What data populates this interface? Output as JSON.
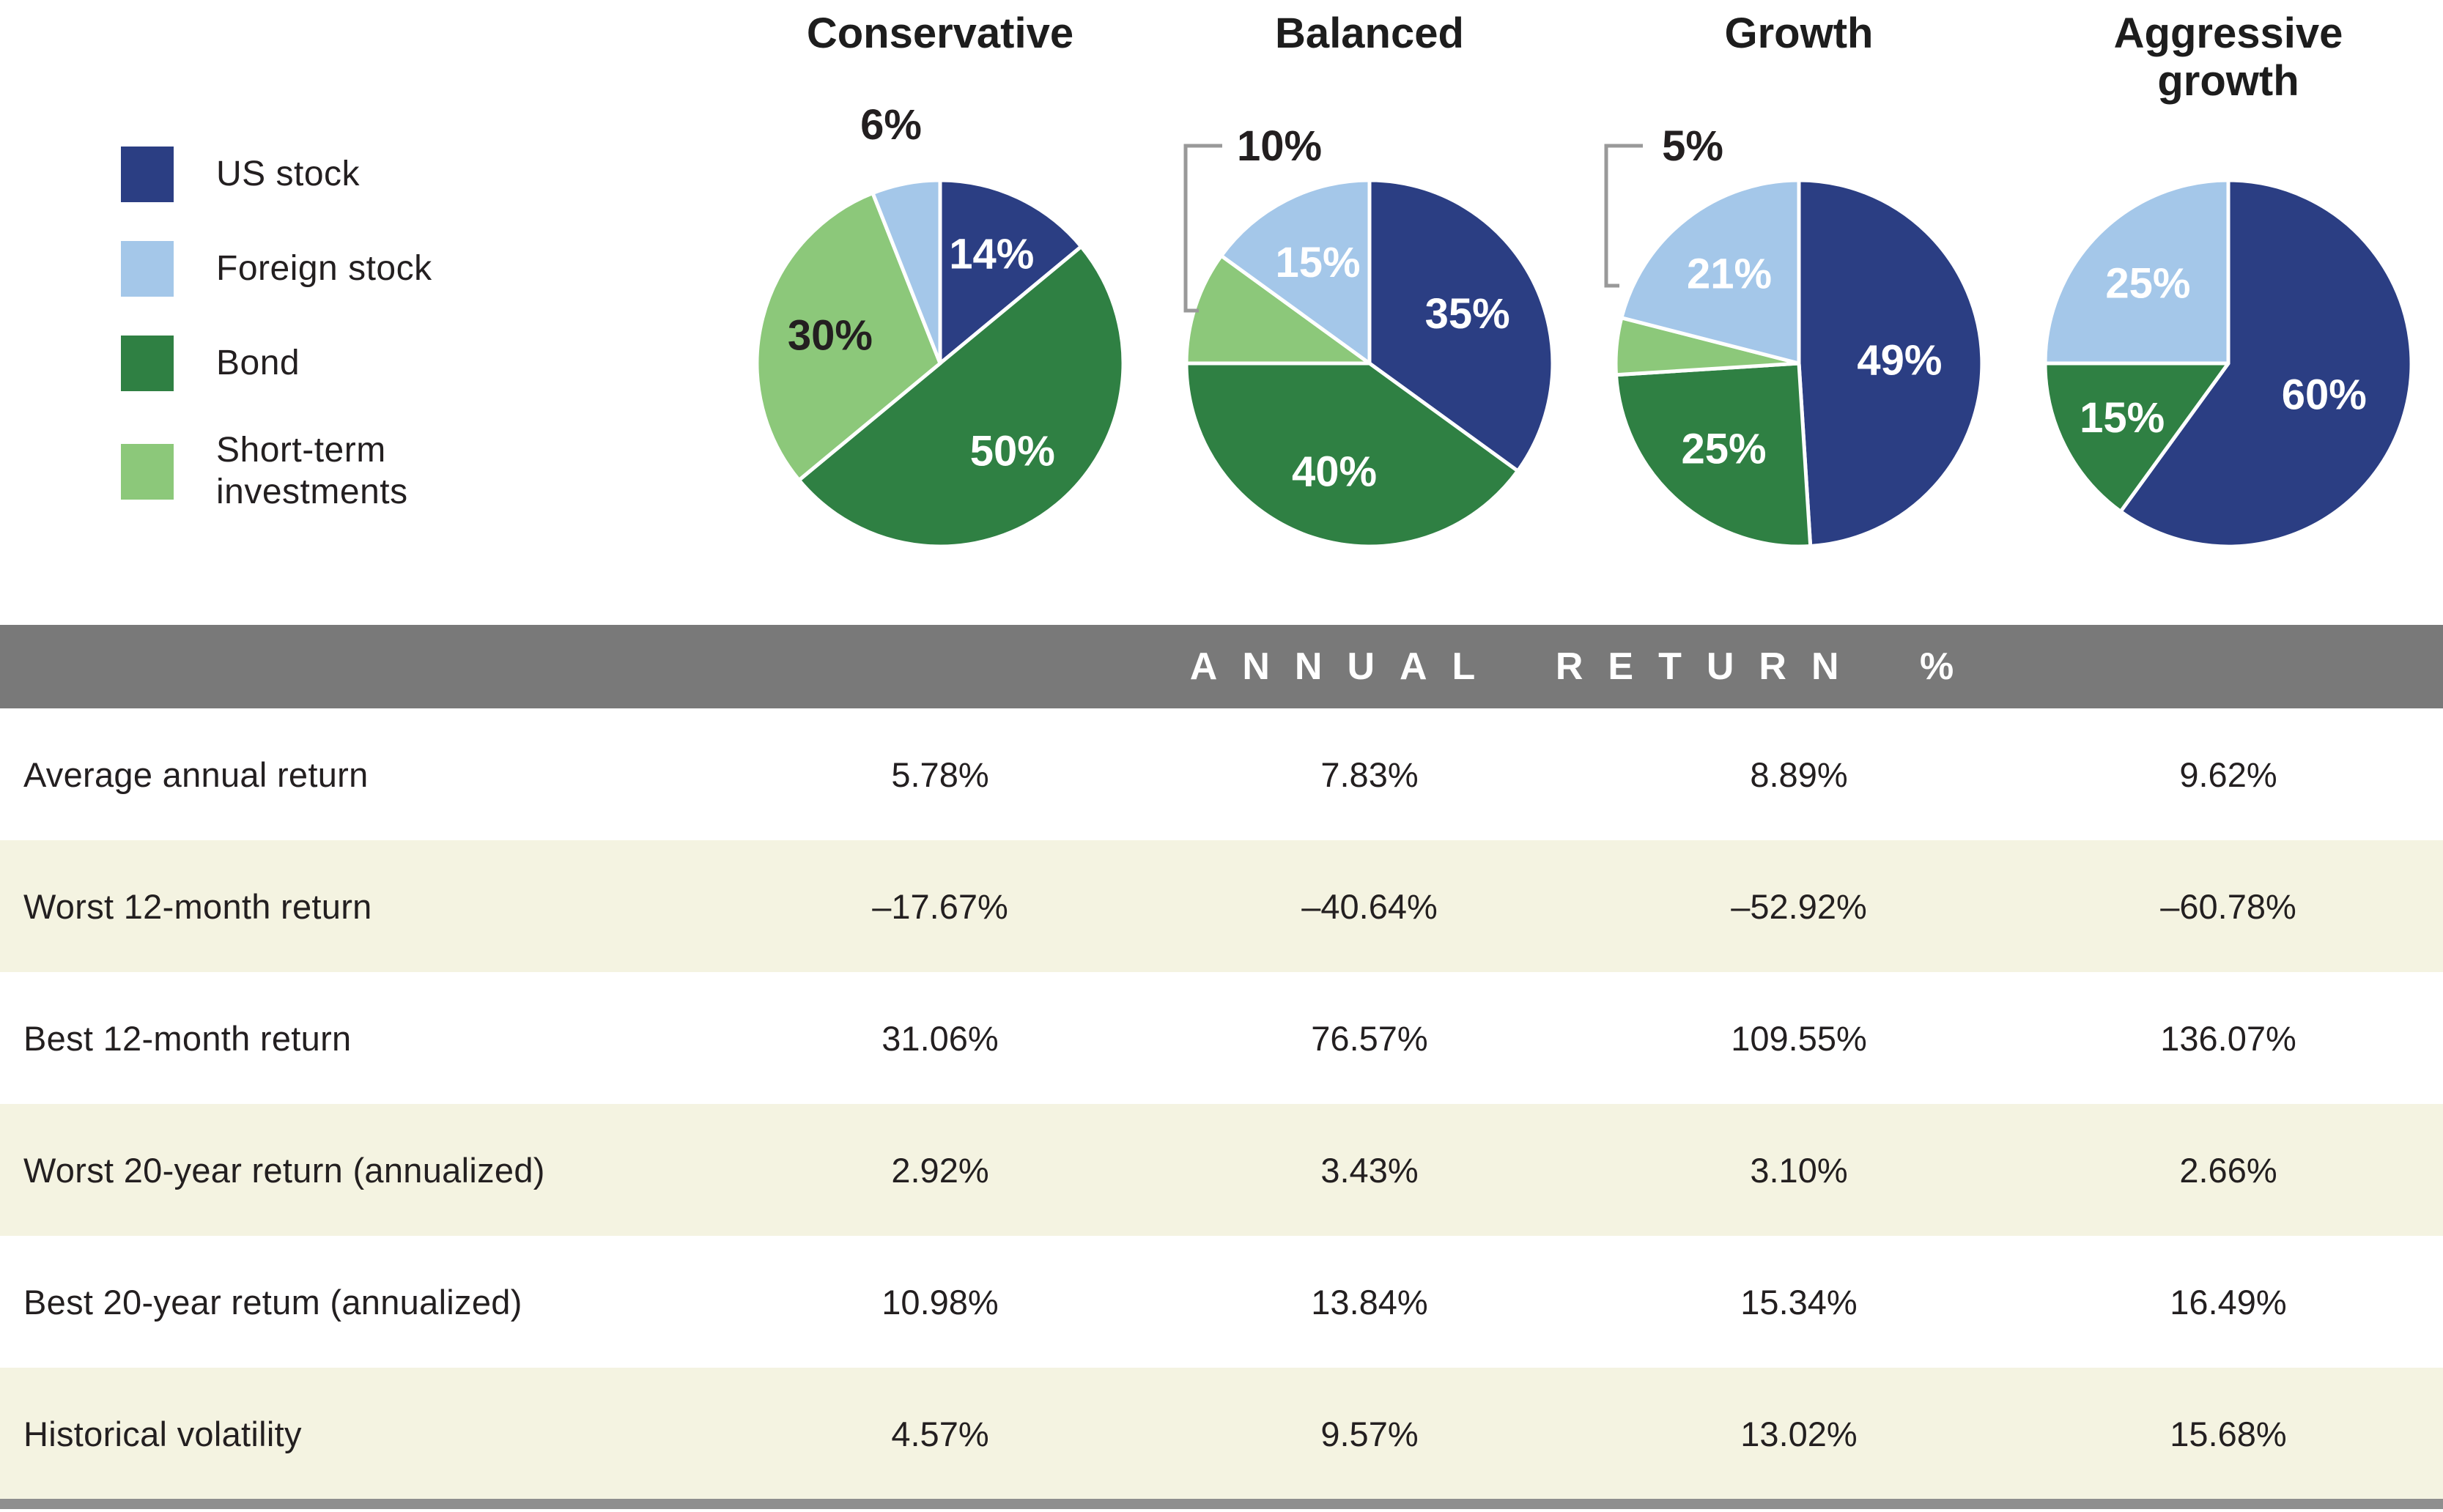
{
  "colors": {
    "us_stock": "#2b3e83",
    "foreign_stock": "#a4c7e9",
    "bond": "#2f8043",
    "short_term": "#8cc87a",
    "header_bar": "#797979",
    "row_alt": "#f4f3e1",
    "text_dark": "#231f20",
    "white_label": "#ffffff",
    "bracket": "#999999",
    "bottom_bar": "#8e8e8e"
  },
  "legend": {
    "items": [
      {
        "label": "US stock",
        "color_key": "us_stock"
      },
      {
        "label": "Foreign stock",
        "color_key": "foreign_stock"
      },
      {
        "label": "Bond",
        "color_key": "bond"
      },
      {
        "label": "Short-term investments",
        "color_key": "short_term"
      }
    ]
  },
  "chart_data": {
    "type": "pie",
    "legend": [
      "US stock",
      "Foreign stock",
      "Bond",
      "Short-term investments"
    ],
    "layout": {
      "start_angle_deg": 0,
      "direction": "clockwise",
      "radius_px": 250
    },
    "pies": [
      {
        "title": "Conservative",
        "title_lines": [
          "Conservative"
        ],
        "slices": [
          {
            "name": "US stock",
            "value": 14,
            "label": "14%",
            "color": "us_stock",
            "label_style": "inside",
            "lr": 0.66
          },
          {
            "name": "Bond",
            "value": 50,
            "label": "50%",
            "color": "bond",
            "label_style": "inside",
            "lr": 0.62
          },
          {
            "name": "Short-term investments",
            "value": 30,
            "label": "30%",
            "color": "short_term",
            "label_style": "inside-dark",
            "lr": 0.62
          },
          {
            "name": "Foreign stock",
            "value": 6,
            "label": "6%",
            "color": "foreign_stock",
            "label_style": "outside",
            "label_xy": [
              226,
              170
            ]
          }
        ]
      },
      {
        "title": "Balanced",
        "title_lines": [
          "Balanced"
        ],
        "slices": [
          {
            "name": "US stock",
            "value": 35,
            "label": "35%",
            "color": "us_stock",
            "label_style": "inside",
            "lr": 0.6
          },
          {
            "name": "Bond",
            "value": 40,
            "label": "40%",
            "color": "bond",
            "label_style": "inside",
            "lr": 0.62
          },
          {
            "name": "Short-term investments",
            "value": 10,
            "label": "10%",
            "color": "short_term",
            "label_style": "outside",
            "label_xy": [
              170,
              199
            ],
            "callout_line": [
              [
                92,
                199
              ],
              [
                42,
                199
              ],
              [
                42,
                424
              ],
              [
                60,
                424
              ]
            ]
          },
          {
            "name": "Foreign stock",
            "value": 15,
            "label": "15%",
            "color": "foreign_stock",
            "label_style": "inside",
            "lr": 0.62
          }
        ]
      },
      {
        "title": "Growth",
        "title_lines": [
          "Growth"
        ],
        "slices": [
          {
            "name": "US stock",
            "value": 49,
            "label": "49%",
            "color": "us_stock",
            "label_style": "inside",
            "lr": 0.55
          },
          {
            "name": "Bond",
            "value": 25,
            "label": "25%",
            "color": "bond",
            "label_style": "inside",
            "lr": 0.62
          },
          {
            "name": "Short-term investments",
            "value": 5,
            "label": "5%",
            "color": "short_term",
            "label_style": "outside",
            "label_xy": [
              148,
              199
            ],
            "callout_line": [
              [
                80,
                199
              ],
              [
                30,
                199
              ],
              [
                30,
                390
              ],
              [
                48,
                390
              ]
            ]
          },
          {
            "name": "Foreign stock",
            "value": 21,
            "label": "21%",
            "color": "foreign_stock",
            "label_style": "inside",
            "lr": 0.62
          }
        ]
      },
      {
        "title": "Aggressive growth",
        "title_lines": [
          "Aggressive",
          "growth"
        ],
        "slices": [
          {
            "name": "US stock",
            "value": 60,
            "label": "60%",
            "color": "us_stock",
            "label_style": "inside",
            "lr": 0.55
          },
          {
            "name": "Bond",
            "value": 15,
            "label": "15%",
            "color": "bond",
            "label_style": "inside",
            "lr": 0.65
          },
          {
            "name": "Foreign stock",
            "value": 25,
            "label": "25%",
            "color": "foreign_stock",
            "label_style": "inside",
            "lr": 0.62
          }
        ]
      }
    ]
  },
  "table": {
    "header": "ANNUAL RETURN %",
    "columns": [
      "Conservative",
      "Balanced",
      "Growth",
      "Aggressive growth"
    ],
    "rows": [
      {
        "label": "Average annual return",
        "values": [
          "5.78%",
          "7.83%",
          "8.89%",
          "9.62%"
        ]
      },
      {
        "label": "Worst 12-month return",
        "values": [
          "–17.67%",
          "–40.64%",
          "–52.92%",
          "–60.78%"
        ]
      },
      {
        "label": "Best 12-month return",
        "values": [
          "31.06%",
          "76.57%",
          "109.55%",
          "136.07%"
        ]
      },
      {
        "label": "Worst 20-year return (annualized)",
        "values": [
          "2.92%",
          "3.43%",
          "3.10%",
          "2.66%"
        ]
      },
      {
        "label": "Best 20-year retum (annualized)",
        "values": [
          "10.98%",
          "13.84%",
          "15.34%",
          "16.49%"
        ]
      },
      {
        "label": "Historical volatility",
        "values": [
          "4.57%",
          "9.57%",
          "13.02%",
          "15.68%"
        ]
      }
    ]
  }
}
